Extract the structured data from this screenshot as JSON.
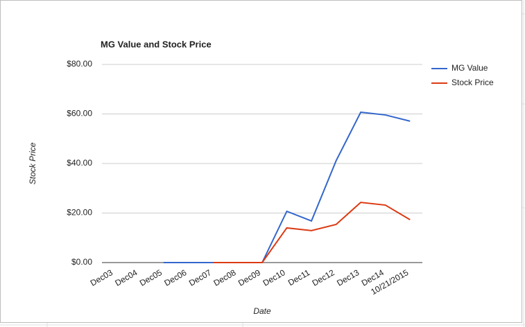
{
  "chart_data": {
    "type": "line",
    "title": "MG Value and Stock Price",
    "x_label": "Date",
    "y_label": "Stock Price",
    "categories": [
      "Dec03",
      "Dec04",
      "Dec05",
      "Dec06",
      "Dec07",
      "Dec08",
      "Dec09",
      "Dec10",
      "Dec11",
      "Dec12",
      "Dec13",
      "Dec14",
      "10/21/2015"
    ],
    "series": [
      {
        "name": "MG Value",
        "color": "#3366cc",
        "values": [
          null,
          null,
          0,
          0,
          0,
          0,
          0,
          20.7,
          16.8,
          41.1,
          60.7,
          59.6,
          57.1
        ]
      },
      {
        "name": "Stock Price",
        "color": "#dc3912",
        "values": [
          null,
          null,
          null,
          null,
          0,
          0,
          0,
          14.0,
          12.9,
          15.4,
          24.3,
          23.2,
          17.3
        ]
      }
    ],
    "ylim": [
      0,
      80
    ],
    "yticks": [
      {
        "value": 0,
        "label": "$0.00"
      },
      {
        "value": 20,
        "label": "$20.00"
      },
      {
        "value": 40,
        "label": "$40.00"
      },
      {
        "value": 60,
        "label": "$60.00"
      },
      {
        "value": 80,
        "label": "$80.00"
      }
    ],
    "grid": true,
    "legend": "right"
  }
}
